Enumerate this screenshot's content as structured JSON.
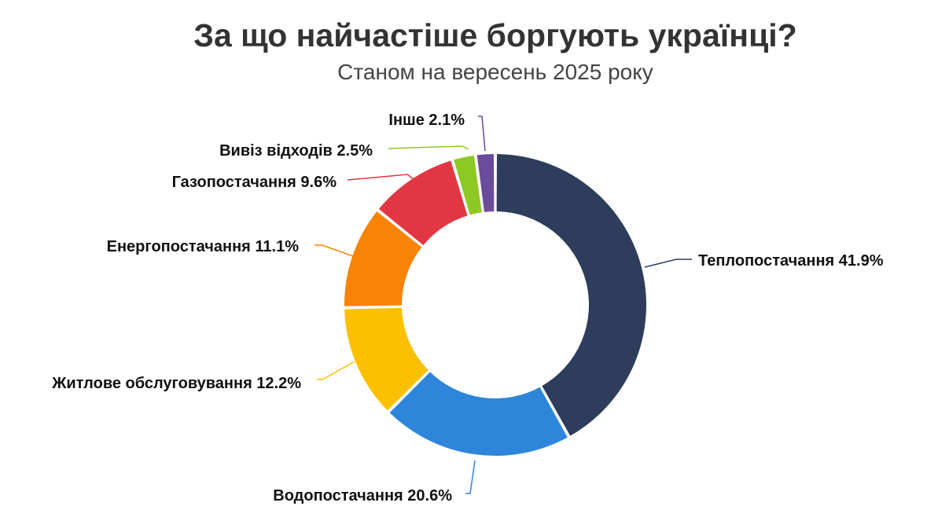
{
  "chart_data": {
    "type": "pie",
    "title": "За що найчастіше боргують українці?",
    "subtitle": "Станом на вересень 2025 року",
    "slices": [
      {
        "name": "Теплопостачання",
        "value": 41.9,
        "label": "Теплопостачання 41.9%",
        "color": "#2e3d5c"
      },
      {
        "name": "Водопостачання",
        "value": 20.6,
        "label": "Водопостачання 20.6%",
        "color": "#2e86db"
      },
      {
        "name": "Житлове обслуговування",
        "value": 12.2,
        "label": "Житлове обслуговування 12.2%",
        "color": "#fbc000"
      },
      {
        "name": "Енергопостачання",
        "value": 11.1,
        "label": "Енергопостачання 11.1%",
        "color": "#f88304"
      },
      {
        "name": "Газопостачання",
        "value": 9.6,
        "label": "Газопостачання 9.6%",
        "color": "#e23743"
      },
      {
        "name": "Вивіз відходів",
        "value": 2.5,
        "label": "Вивіз відходів 2.5%",
        "color": "#8dc823"
      },
      {
        "name": "Інше",
        "value": 2.1,
        "label": "Інше 2.1%",
        "color": "#6a4b9c"
      }
    ]
  }
}
